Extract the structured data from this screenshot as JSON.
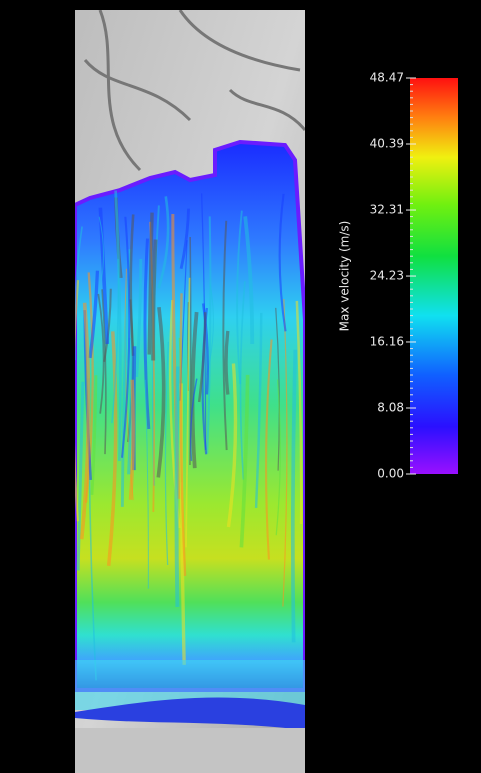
{
  "colorbar": {
    "label": "Max velocity (m/s)",
    "lim": [
      0,
      48.47
    ],
    "ticks": [
      {
        "value": 0,
        "label": "0.00"
      },
      {
        "value": 8.08,
        "label": "8.08"
      },
      {
        "value": 16.16,
        "label": "16.16"
      },
      {
        "value": 24.23,
        "label": "24.23"
      },
      {
        "value": 32.31,
        "label": "32.31"
      },
      {
        "value": 40.39,
        "label": "40.39"
      },
      {
        "value": 48.47,
        "label": "48.47"
      }
    ]
  }
}
